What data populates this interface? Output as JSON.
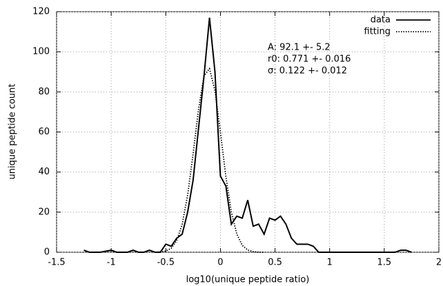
{
  "chart_data": {
    "type": "line",
    "xlabel": "log10(unique peptide ratio)",
    "ylabel": "unique peptide count",
    "xlim": [
      -1.5,
      2
    ],
    "xticks": [
      -1.5,
      -1,
      -0.5,
      0,
      0.5,
      1,
      1.5,
      2
    ],
    "ylim": [
      0,
      120
    ],
    "yticks": [
      0,
      20,
      40,
      60,
      80,
      100,
      120
    ],
    "grid": true,
    "legend": "upper right",
    "annotations": [
      "A: 92.1 +- 5.2",
      "r0: 0.771 +- 0.016",
      "σ: 0.122 +- 0.012"
    ],
    "series": [
      {
        "name": "data",
        "color": "#000000",
        "style": "solid",
        "x": [
          -1.25,
          -1.2,
          -1.15,
          -1.1,
          -1.05,
          -1.0,
          -0.95,
          -0.9,
          -0.85,
          -0.8,
          -0.75,
          -0.7,
          -0.65,
          -0.6,
          -0.55,
          -0.5,
          -0.45,
          -0.4,
          -0.35,
          -0.3,
          -0.25,
          -0.2,
          -0.15,
          -0.1,
          -0.05,
          0,
          0.05,
          0.1,
          0.15,
          0.2,
          0.25,
          0.3,
          0.35,
          0.4,
          0.45,
          0.5,
          0.55,
          0.6,
          0.65,
          0.7,
          0.75,
          0.8,
          0.85,
          0.9,
          0.95,
          1.0,
          1.05,
          1.1,
          1.15,
          1.2,
          1.25,
          1.3,
          1.35,
          1.4,
          1.45,
          1.5,
          1.55,
          1.6,
          1.65,
          1.7,
          1.75
        ],
        "values": [
          1,
          0,
          0,
          0,
          0.5,
          1,
          0,
          0,
          0,
          1,
          0,
          0,
          1,
          0,
          0,
          4,
          3,
          7,
          9,
          20,
          36,
          62,
          88,
          117,
          90,
          38,
          33,
          14,
          18,
          17,
          26,
          13,
          14,
          9,
          17,
          16,
          18,
          14,
          7,
          4,
          4,
          4,
          3,
          0,
          0,
          0,
          0,
          0,
          0,
          0,
          0,
          0,
          0,
          0,
          0,
          0,
          0,
          0,
          1,
          1,
          0
        ]
      },
      {
        "name": "fitting",
        "color": "#000000",
        "style": "dotted",
        "x": [
          -0.6,
          -0.55,
          -0.5,
          -0.45,
          -0.4,
          -0.35,
          -0.3,
          -0.25,
          -0.2,
          -0.15,
          -0.1,
          -0.05,
          0,
          0.05,
          0.1,
          0.15,
          0.2,
          0.25,
          0.3,
          0.35,
          0.4
        ],
        "values": [
          0,
          0.15,
          0.6,
          2.0,
          5.8,
          13.9,
          28.6,
          49,
          71.4,
          88,
          91.6,
          80.6,
          60,
          37.7,
          20,
          9.1,
          3.4,
          1.1,
          0.3,
          0,
          0
        ]
      }
    ]
  }
}
